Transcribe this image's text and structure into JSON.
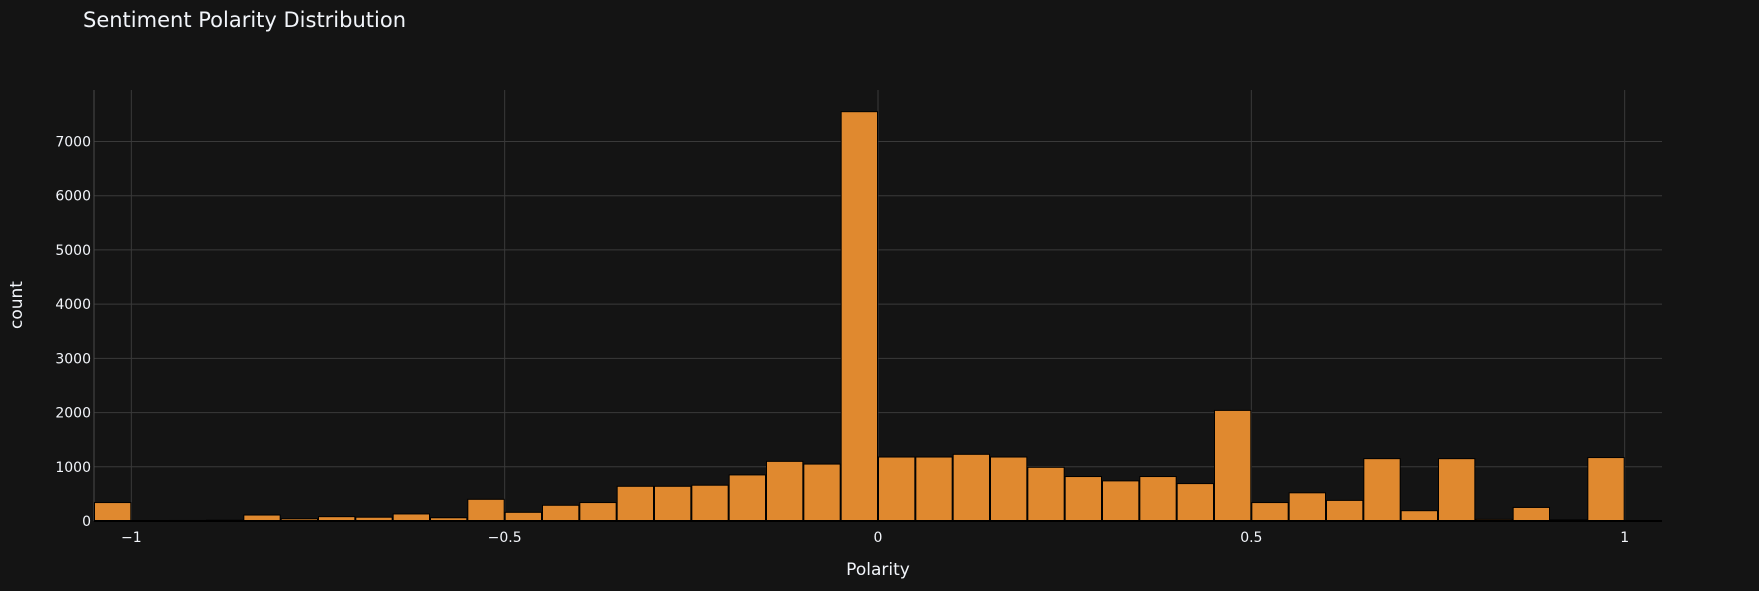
{
  "chart_data": {
    "type": "bar",
    "title": "Sentiment Polarity Distribution",
    "xlabel": "Polarity",
    "ylabel": "count",
    "xlim": [
      -1.05,
      1.05
    ],
    "ylim": [
      0,
      7950
    ],
    "grid": true,
    "x_ticks": [
      -1,
      -0.5,
      0,
      0.5,
      1
    ],
    "x_tick_labels": [
      "−1",
      "−0.5",
      "0",
      "0.5",
      "1"
    ],
    "y_ticks": [
      0,
      1000,
      2000,
      3000,
      4000,
      5000,
      6000,
      7000
    ],
    "y_tick_labels": [
      "0",
      "1000",
      "2000",
      "3000",
      "4000",
      "5000",
      "6000",
      "7000"
    ],
    "bar_color": "#e0892f",
    "bar_edge_color": "#000000",
    "background_color": "#141414",
    "grid_color": "#3a3a3a",
    "bins": [
      {
        "x0": -1.05,
        "x1": -1.0,
        "count": 340
      },
      {
        "x0": -1.0,
        "x1": -0.95,
        "count": 0
      },
      {
        "x0": -0.95,
        "x1": -0.9,
        "count": 10
      },
      {
        "x0": -0.9,
        "x1": -0.85,
        "count": 15
      },
      {
        "x0": -0.85,
        "x1": -0.8,
        "count": 110
      },
      {
        "x0": -0.8,
        "x1": -0.75,
        "count": 40
      },
      {
        "x0": -0.75,
        "x1": -0.7,
        "count": 80
      },
      {
        "x0": -0.7,
        "x1": -0.65,
        "count": 70
      },
      {
        "x0": -0.65,
        "x1": -0.6,
        "count": 130
      },
      {
        "x0": -0.6,
        "x1": -0.55,
        "count": 60
      },
      {
        "x0": -0.55,
        "x1": -0.5,
        "count": 400
      },
      {
        "x0": -0.5,
        "x1": -0.45,
        "count": 160
      },
      {
        "x0": -0.45,
        "x1": -0.4,
        "count": 290
      },
      {
        "x0": -0.4,
        "x1": -0.35,
        "count": 340
      },
      {
        "x0": -0.35,
        "x1": -0.3,
        "count": 640
      },
      {
        "x0": -0.3,
        "x1": -0.25,
        "count": 640
      },
      {
        "x0": -0.25,
        "x1": -0.2,
        "count": 660
      },
      {
        "x0": -0.2,
        "x1": -0.15,
        "count": 850
      },
      {
        "x0": -0.15,
        "x1": -0.1,
        "count": 1100
      },
      {
        "x0": -0.1,
        "x1": -0.05,
        "count": 1050
      },
      {
        "x0": -0.05,
        "x1": 0.0,
        "count": 7550
      },
      {
        "x0": 0.0,
        "x1": 0.05,
        "count": 1180
      },
      {
        "x0": 0.05,
        "x1": 0.1,
        "count": 1180
      },
      {
        "x0": 0.1,
        "x1": 0.15,
        "count": 1230
      },
      {
        "x0": 0.15,
        "x1": 0.2,
        "count": 1180
      },
      {
        "x0": 0.2,
        "x1": 0.25,
        "count": 990
      },
      {
        "x0": 0.25,
        "x1": 0.3,
        "count": 820
      },
      {
        "x0": 0.3,
        "x1": 0.35,
        "count": 740
      },
      {
        "x0": 0.35,
        "x1": 0.4,
        "count": 820
      },
      {
        "x0": 0.4,
        "x1": 0.45,
        "count": 690
      },
      {
        "x0": 0.45,
        "x1": 0.5,
        "count": 2040
      },
      {
        "x0": 0.5,
        "x1": 0.55,
        "count": 340
      },
      {
        "x0": 0.55,
        "x1": 0.6,
        "count": 520
      },
      {
        "x0": 0.6,
        "x1": 0.65,
        "count": 380
      },
      {
        "x0": 0.65,
        "x1": 0.7,
        "count": 1150
      },
      {
        "x0": 0.7,
        "x1": 0.75,
        "count": 190
      },
      {
        "x0": 0.75,
        "x1": 0.8,
        "count": 1150
      },
      {
        "x0": 0.8,
        "x1": 0.85,
        "count": 30
      },
      {
        "x0": 0.85,
        "x1": 0.9,
        "count": 250
      },
      {
        "x0": 0.9,
        "x1": 0.95,
        "count": 20
      },
      {
        "x0": 0.95,
        "x1": 1.0,
        "count": 1170
      }
    ]
  }
}
